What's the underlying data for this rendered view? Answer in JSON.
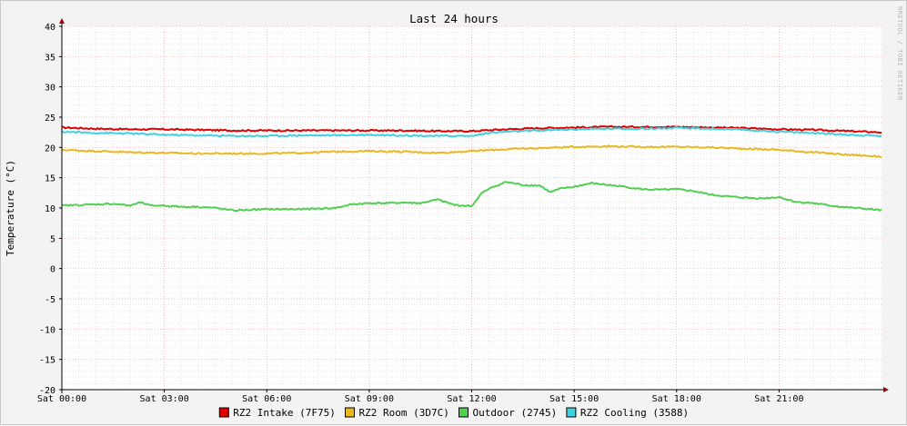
{
  "chart_data": {
    "type": "line",
    "title": "Last 24 hours",
    "ylabel": "Temperature (°C)",
    "watermark": "RRDTOOL / TOBI OETIKER",
    "ylim": [
      -20,
      40
    ],
    "y_ticks": [
      40,
      35,
      30,
      25,
      20,
      15,
      10,
      5,
      0,
      -5,
      -10,
      -15,
      -20
    ],
    "x_hours_range": [
      0,
      24
    ],
    "x_ticks": [
      {
        "hour": 0,
        "label": "Sat 00:00"
      },
      {
        "hour": 3,
        "label": "Sat 03:00"
      },
      {
        "hour": 6,
        "label": "Sat 06:00"
      },
      {
        "hour": 9,
        "label": "Sat 09:00"
      },
      {
        "hour": 12,
        "label": "Sat 12:00"
      },
      {
        "hour": 15,
        "label": "Sat 15:00"
      },
      {
        "hour": 18,
        "label": "Sat 18:00"
      },
      {
        "hour": 21,
        "label": "Sat 21:00"
      }
    ],
    "grid": true,
    "legend_position": "bottom",
    "series": [
      {
        "name": "RZ2 Intake (7F75)",
        "color": "#e00000",
        "points": [
          [
            0,
            23.3
          ],
          [
            1,
            23.1
          ],
          [
            2,
            23.0
          ],
          [
            3,
            23.0
          ],
          [
            4,
            22.9
          ],
          [
            5,
            22.8
          ],
          [
            6,
            22.8
          ],
          [
            7,
            22.8
          ],
          [
            8,
            22.8
          ],
          [
            9,
            22.8
          ],
          [
            10,
            22.8
          ],
          [
            11,
            22.7
          ],
          [
            12,
            22.7
          ],
          [
            13,
            23.0
          ],
          [
            14,
            23.2
          ],
          [
            15,
            23.3
          ],
          [
            16,
            23.4
          ],
          [
            17,
            23.4
          ],
          [
            18,
            23.4
          ],
          [
            19,
            23.3
          ],
          [
            20,
            23.2
          ],
          [
            21,
            23.0
          ],
          [
            22,
            22.9
          ],
          [
            23,
            22.7
          ],
          [
            24,
            22.5
          ]
        ]
      },
      {
        "name": "RZ2 Room (3D7C)",
        "color": "#e8b820",
        "points": [
          [
            0,
            19.6
          ],
          [
            1,
            19.4
          ],
          [
            2,
            19.2
          ],
          [
            3,
            19.1
          ],
          [
            4,
            19.0
          ],
          [
            5,
            19.0
          ],
          [
            6,
            19.0
          ],
          [
            7,
            19.1
          ],
          [
            8,
            19.3
          ],
          [
            9,
            19.4
          ],
          [
            10,
            19.3
          ],
          [
            11,
            19.1
          ],
          [
            12,
            19.4
          ],
          [
            13,
            19.7
          ],
          [
            14,
            19.9
          ],
          [
            15,
            20.1
          ],
          [
            16,
            20.2
          ],
          [
            17,
            20.1
          ],
          [
            18,
            20.1
          ],
          [
            19,
            20.0
          ],
          [
            20,
            19.8
          ],
          [
            21,
            19.6
          ],
          [
            22,
            19.2
          ],
          [
            23,
            18.8
          ],
          [
            24,
            18.5
          ]
        ]
      },
      {
        "name": "Outdoor (2745)",
        "color": "#50d050",
        "points": [
          [
            0,
            10.4
          ],
          [
            0.5,
            10.5
          ],
          [
            1,
            10.6
          ],
          [
            1.5,
            10.7
          ],
          [
            2,
            10.4
          ],
          [
            2.3,
            10.9
          ],
          [
            2.6,
            10.4
          ],
          [
            3,
            10.4
          ],
          [
            3.5,
            10.2
          ],
          [
            4,
            10.2
          ],
          [
            4.5,
            10.0
          ],
          [
            5,
            9.6
          ],
          [
            5.5,
            9.7
          ],
          [
            6,
            9.8
          ],
          [
            7,
            9.8
          ],
          [
            8,
            10.0
          ],
          [
            8.5,
            10.6
          ],
          [
            9,
            10.8
          ],
          [
            9.5,
            10.8
          ],
          [
            10,
            10.9
          ],
          [
            10.5,
            10.8
          ],
          [
            11,
            11.4
          ],
          [
            11.5,
            10.5
          ],
          [
            12,
            10.3
          ],
          [
            12.3,
            12.5
          ],
          [
            12.6,
            13.4
          ],
          [
            13,
            14.3
          ],
          [
            13.5,
            13.8
          ],
          [
            14,
            13.7
          ],
          [
            14.3,
            12.6
          ],
          [
            14.6,
            13.2
          ],
          [
            15,
            13.5
          ],
          [
            15.5,
            14.1
          ],
          [
            16,
            13.8
          ],
          [
            16.5,
            13.5
          ],
          [
            17,
            13.1
          ],
          [
            17.5,
            13.0
          ],
          [
            18,
            13.1
          ],
          [
            18.5,
            12.8
          ],
          [
            19,
            12.2
          ],
          [
            19.5,
            11.9
          ],
          [
            20,
            11.7
          ],
          [
            20.5,
            11.6
          ],
          [
            21,
            11.8
          ],
          [
            21.5,
            11.0
          ],
          [
            22,
            10.8
          ],
          [
            22.5,
            10.4
          ],
          [
            23,
            10.1
          ],
          [
            23.5,
            9.9
          ],
          [
            24,
            9.6
          ]
        ]
      },
      {
        "name": "RZ2 Cooling (3588)",
        "color": "#40d0e0",
        "points": [
          [
            0,
            22.6
          ],
          [
            1,
            22.4
          ],
          [
            2,
            22.3
          ],
          [
            3,
            22.1
          ],
          [
            4,
            22.0
          ],
          [
            5,
            21.9
          ],
          [
            6,
            21.9
          ],
          [
            7,
            22.0
          ],
          [
            8,
            22.0
          ],
          [
            9,
            22.1
          ],
          [
            10,
            22.0
          ],
          [
            11,
            21.9
          ],
          [
            12,
            21.9
          ],
          [
            12.5,
            22.4
          ],
          [
            13,
            22.6
          ],
          [
            14,
            22.8
          ],
          [
            15,
            23.0
          ],
          [
            16,
            23.1
          ],
          [
            17,
            23.1
          ],
          [
            18,
            23.2
          ],
          [
            19,
            23.1
          ],
          [
            20,
            22.9
          ],
          [
            21,
            22.6
          ],
          [
            22,
            22.4
          ],
          [
            23,
            22.1
          ],
          [
            24,
            21.9
          ]
        ]
      }
    ]
  }
}
